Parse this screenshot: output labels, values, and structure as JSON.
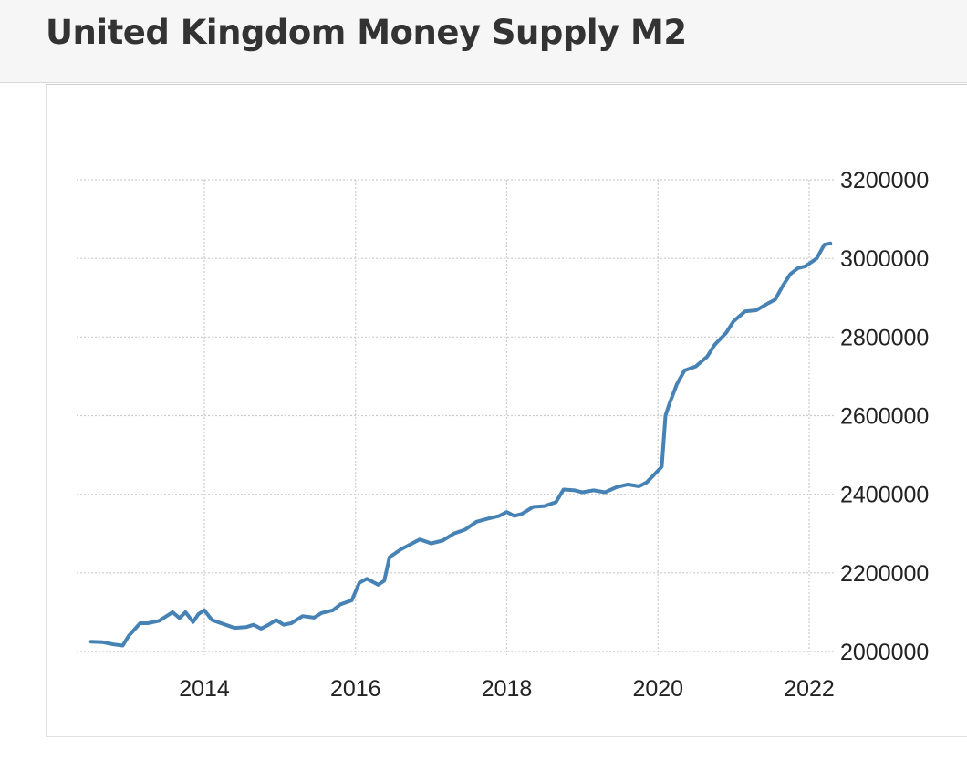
{
  "page": {
    "title": "United Kingdom Money Supply M2"
  },
  "colors": {
    "line": "#4682b4",
    "grid": "#cccccc",
    "header_bg": "#f6f6f6"
  },
  "chart_data": {
    "type": "line",
    "title": "United Kingdom Money Supply M2",
    "xlabel": "",
    "ylabel": "",
    "grid": true,
    "y_axis_position": "right",
    "xlim": [
      2012.5,
      2022.35
    ],
    "ylim": [
      2000000,
      3200000
    ],
    "x_ticks": [
      2014,
      2016,
      2018,
      2020,
      2022
    ],
    "x_tick_labels": [
      "2014",
      "2016",
      "2018",
      "2020",
      "2022"
    ],
    "y_ticks": [
      2000000,
      2200000,
      2400000,
      2600000,
      2800000,
      3000000,
      3200000
    ],
    "y_tick_labels": [
      "2000000",
      "2200000",
      "2400000",
      "2600000",
      "2800000",
      "3000000",
      "3200000"
    ],
    "series": [
      {
        "x": [
          2012.5,
          2012.65,
          2012.8,
          2012.92,
          2013.0,
          2013.15,
          2013.25,
          2013.4,
          2013.5,
          2013.58,
          2013.67,
          2013.75,
          2013.85,
          2013.92,
          2014.0,
          2014.1,
          2014.25,
          2014.4,
          2014.55,
          2014.65,
          2014.75,
          2014.85,
          2014.95,
          2015.05,
          2015.15,
          2015.3,
          2015.45,
          2015.55,
          2015.7,
          2015.8,
          2015.95,
          2016.05,
          2016.15,
          2016.3,
          2016.38,
          2016.45,
          2016.6,
          2016.75,
          2016.85,
          2017.0,
          2017.15,
          2017.3,
          2017.45,
          2017.6,
          2017.75,
          2017.9,
          2018.0,
          2018.1,
          2018.2,
          2018.35,
          2018.5,
          2018.65,
          2018.75,
          2018.9,
          2019.0,
          2019.15,
          2019.3,
          2019.45,
          2019.6,
          2019.75,
          2019.85,
          2019.95,
          2020.05,
          2020.1,
          2020.15,
          2020.25,
          2020.35,
          2020.5,
          2020.65,
          2020.75,
          2020.9,
          2021.0,
          2021.15,
          2021.3,
          2021.45,
          2021.55,
          2021.65,
          2021.75,
          2021.85,
          2021.95,
          2022.1,
          2022.2,
          2022.28
        ],
        "values": [
          2025000,
          2024000,
          2018000,
          2015000,
          2040000,
          2072000,
          2072000,
          2078000,
          2090000,
          2100000,
          2085000,
          2100000,
          2075000,
          2095000,
          2105000,
          2080000,
          2070000,
          2060000,
          2062000,
          2068000,
          2058000,
          2068000,
          2080000,
          2068000,
          2072000,
          2090000,
          2086000,
          2098000,
          2105000,
          2120000,
          2130000,
          2175000,
          2185000,
          2170000,
          2180000,
          2240000,
          2260000,
          2275000,
          2285000,
          2275000,
          2282000,
          2300000,
          2310000,
          2330000,
          2338000,
          2345000,
          2355000,
          2345000,
          2350000,
          2368000,
          2370000,
          2380000,
          2412000,
          2410000,
          2405000,
          2410000,
          2405000,
          2418000,
          2425000,
          2420000,
          2430000,
          2450000,
          2470000,
          2600000,
          2630000,
          2680000,
          2715000,
          2725000,
          2750000,
          2780000,
          2810000,
          2840000,
          2865000,
          2868000,
          2885000,
          2895000,
          2930000,
          2960000,
          2975000,
          2980000,
          3000000,
          3035000,
          3038000
        ]
      }
    ]
  }
}
